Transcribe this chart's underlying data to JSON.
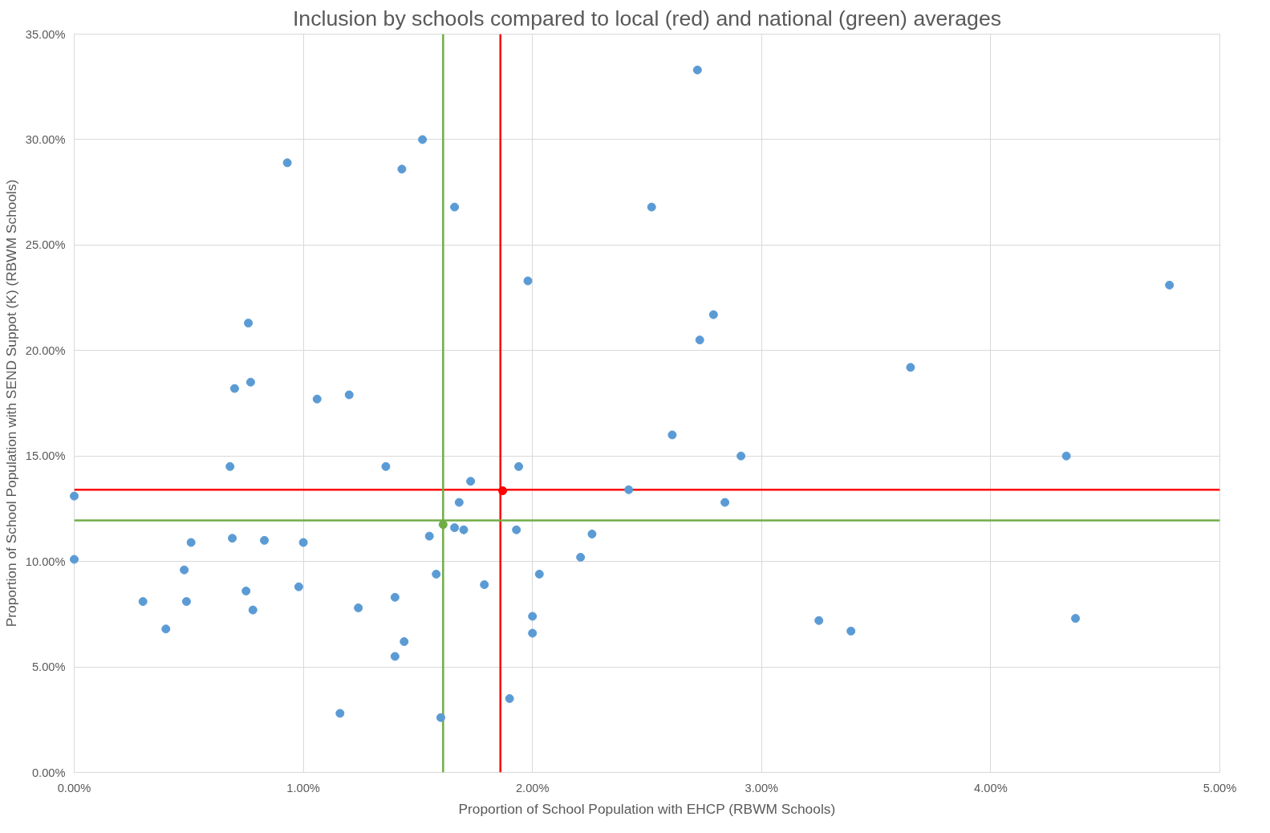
{
  "chart_data": {
    "type": "scatter",
    "title": "Inclusion by schools compared to local (red) and national (green) averages",
    "xlabel": "Proportion of School Population with EHCP (RBWM Schools)",
    "ylabel": "Proportion of School Population with SEND Suppot (K) (RBWM Schools)",
    "xlim": [
      0,
      5
    ],
    "ylim": [
      0,
      35
    ],
    "xticks": [
      {
        "value": 0,
        "label": "0.00%"
      },
      {
        "value": 1,
        "label": "1.00%"
      },
      {
        "value": 2,
        "label": "2.00%"
      },
      {
        "value": 3,
        "label": "3.00%"
      },
      {
        "value": 4,
        "label": "4.00%"
      },
      {
        "value": 5,
        "label": "5.00%"
      }
    ],
    "yticks": [
      {
        "value": 0,
        "label": "0.00%"
      },
      {
        "value": 5,
        "label": "5.00%"
      },
      {
        "value": 10,
        "label": "10.00%"
      },
      {
        "value": 15,
        "label": "15.00%"
      },
      {
        "value": 20,
        "label": "20.00%"
      },
      {
        "value": 25,
        "label": "25.00%"
      },
      {
        "value": 30,
        "label": "30.00%"
      },
      {
        "value": 35,
        "label": "35.00%"
      }
    ],
    "grid": true,
    "marker": "circle",
    "series": [
      {
        "color": "#5b9bd5",
        "x": [
          0,
          0,
          0.3,
          0.4,
          0.48,
          0.49,
          0.51,
          0.68,
          0.69,
          0.7,
          0.75,
          0.76,
          0.77,
          0.78,
          0.83,
          0.93,
          0.98,
          1.0,
          1.06,
          1.16,
          1.2,
          1.24,
          1.36,
          1.4,
          1.4,
          1.43,
          1.44,
          1.52,
          1.55,
          1.58,
          1.6,
          1.66,
          1.66,
          1.68,
          1.7,
          1.73,
          1.79,
          1.9,
          1.93,
          1.94,
          1.98,
          2.0,
          2.0,
          2.03,
          2.21,
          2.26,
          2.42,
          2.52,
          2.61,
          2.72,
          2.73,
          2.79,
          2.84,
          2.91,
          3.25,
          3.39,
          3.65,
          4.33,
          4.37,
          4.78
        ],
        "values": [
          13.1,
          10.1,
          8.1,
          6.8,
          9.6,
          8.1,
          10.9,
          14.5,
          11.1,
          18.2,
          8.6,
          21.3,
          18.5,
          7.7,
          11.0,
          28.9,
          8.8,
          10.9,
          17.7,
          2.8,
          17.9,
          7.8,
          14.5,
          8.3,
          5.5,
          28.6,
          6.2,
          30.0,
          11.2,
          9.4,
          2.6,
          26.8,
          11.6,
          12.8,
          11.5,
          13.8,
          8.9,
          3.5,
          11.5,
          14.5,
          23.3,
          7.4,
          6.6,
          9.4,
          10.2,
          11.3,
          13.4,
          26.8,
          16.0,
          33.3,
          20.5,
          21.7,
          12.8,
          15.0,
          7.2,
          6.7,
          19.2,
          15.0,
          7.3,
          23.1
        ]
      },
      {
        "color": "#ff0000",
        "x": [
          1.87
        ],
        "values": [
          13.35
        ]
      },
      {
        "color": "#70ad47",
        "x": [
          1.61
        ],
        "values": [
          11.75
        ]
      }
    ],
    "ref_lines": [
      {
        "axis": "x",
        "value": 1.86,
        "color": "#ff0000"
      },
      {
        "axis": "y",
        "value": 13.4,
        "color": "#ff0000"
      },
      {
        "axis": "x",
        "value": 1.61,
        "color": "#70ad47"
      },
      {
        "axis": "y",
        "value": 11.95,
        "color": "#70ad47"
      }
    ]
  }
}
